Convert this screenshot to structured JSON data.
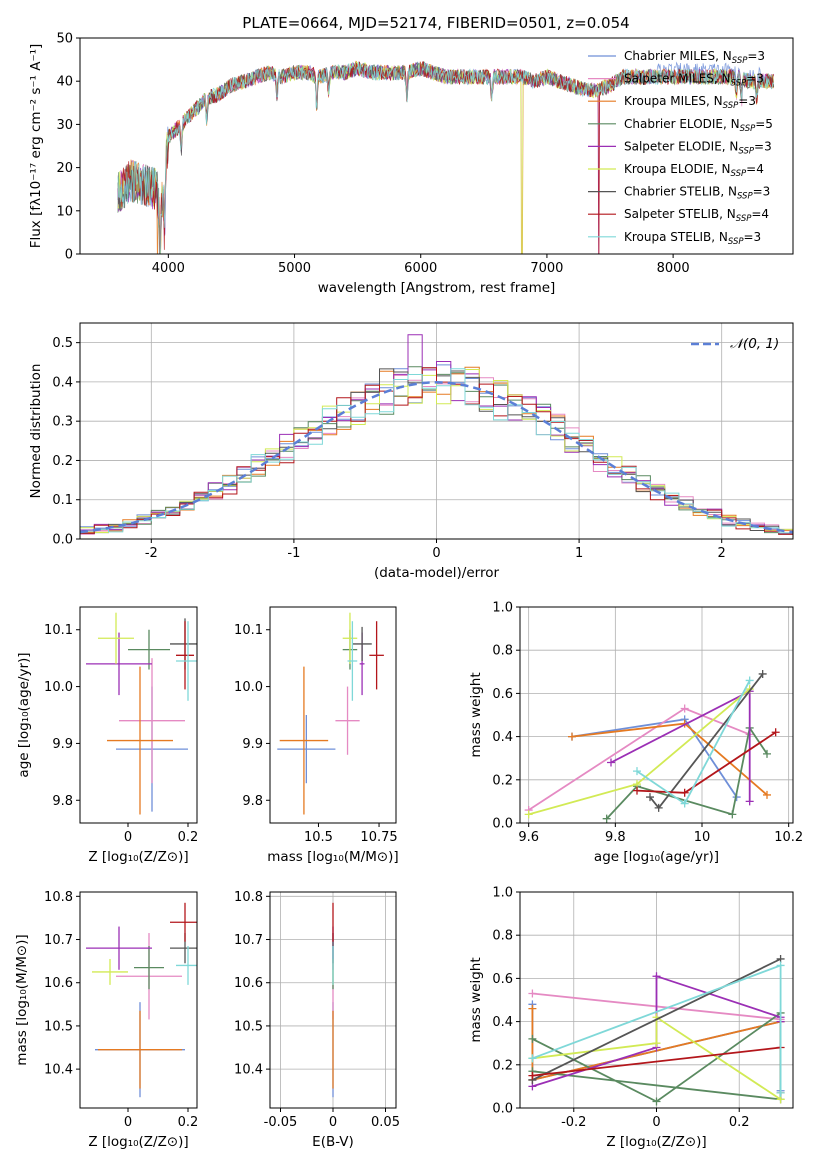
{
  "chart_data": [
    {
      "id": "spectrum",
      "type": "line",
      "title": "PLATE=0664, MJD=52174, FIBERID=0501, z=0.054",
      "xlabel": "wavelength [Angstrom, rest frame]",
      "ylabel": "Flux [fλ10⁻¹⁷ erg cm⁻² s⁻¹ A⁻¹]",
      "xlim": [
        3300,
        8950
      ],
      "ylim": [
        0,
        50
      ],
      "xticks": [
        4000,
        5000,
        6000,
        7000,
        8000
      ],
      "yticks": [
        0,
        10,
        20,
        30,
        40,
        50
      ],
      "legend_position": "upper-right",
      "spectrum_shape": {
        "x": [
          3600,
          3700,
          3800,
          3900,
          3950,
          4000,
          4100,
          4200,
          4300,
          4400,
          4500,
          4600,
          4700,
          4800,
          4900,
          5000,
          5100,
          5200,
          5300,
          5400,
          5500,
          5600,
          5700,
          5800,
          5900,
          6000,
          6100,
          6200,
          6300,
          6400,
          6500,
          6600,
          6700,
          6800,
          6900,
          7000,
          7100,
          7200,
          7300,
          7400,
          7500,
          7600,
          7700,
          7800,
          7900,
          8000,
          8100,
          8200,
          8300,
          8400,
          8500,
          8600,
          8700,
          8800
        ],
        "y": [
          14,
          17,
          16,
          15,
          12,
          27,
          30,
          33,
          36,
          37,
          39,
          40,
          41,
          42,
          41,
          42,
          42,
          41,
          42,
          42,
          43,
          42,
          42,
          42,
          42,
          43,
          42,
          41,
          41,
          41,
          41,
          41,
          41,
          41,
          40,
          41,
          40,
          39,
          38,
          38,
          39,
          41,
          41,
          41,
          41,
          41,
          41,
          41,
          41,
          41,
          41,
          40,
          40,
          40
        ]
      },
      "series": [
        {
          "name": "Chabrier MILES, N",
          "sub": "SSP",
          "suffix": "=3",
          "color": "#6f8fd8"
        },
        {
          "name": "Salpeter MILES, N",
          "sub": "SSP",
          "suffix": "=3",
          "color": "#e58ac3"
        },
        {
          "name": "Kroupa MILES, N",
          "sub": "SSP",
          "suffix": "=3",
          "color": "#e57a22"
        },
        {
          "name": "Chabrier ELODIE, N",
          "sub": "SSP",
          "suffix": "=5",
          "color": "#5a8a60"
        },
        {
          "name": "Salpeter ELODIE, N",
          "sub": "SSP",
          "suffix": "=3",
          "color": "#9b2fb5"
        },
        {
          "name": "Kroupa ELODIE, N",
          "sub": "SSP",
          "suffix": "=4",
          "color": "#d2ea55"
        },
        {
          "name": "Chabrier STELIB, N",
          "sub": "SSP",
          "suffix": "=3",
          "color": "#555555"
        },
        {
          "name": "Salpeter STELIB, N",
          "sub": "SSP",
          "suffix": "=4",
          "color": "#b3161b"
        },
        {
          "name": "Kroupa STELIB, N",
          "sub": "SSP",
          "suffix": "=3",
          "color": "#7fd8d8"
        }
      ]
    },
    {
      "id": "residuals",
      "type": "line",
      "xlabel": "(data-model)/error",
      "ylabel": "Normed distribution",
      "xlim": [
        -2.5,
        2.5
      ],
      "ylim": [
        0,
        0.55
      ],
      "xticks": [
        -2,
        -1,
        0,
        1,
        2
      ],
      "yticks": [
        0.0,
        0.1,
        0.2,
        0.3,
        0.4,
        0.5
      ],
      "grid": true,
      "legend_position": "upper-right",
      "reference_curve": {
        "name": "𝒩(0, 1)",
        "color": "#5b7fd6",
        "style": "dashed"
      },
      "bin_width": 0.1,
      "histogram_peak": 0.52
    },
    {
      "id": "age_vs_Z",
      "type": "scatter",
      "xlabel": "Z [log₁₀(Z/Z⊙)]",
      "ylabel": "age  [log₁₀(age/yr)]",
      "xlim": [
        -0.16,
        0.23
      ],
      "ylim": [
        9.76,
        10.14
      ],
      "xticks": [
        0.0,
        0.2
      ],
      "yticks": [
        9.8,
        9.9,
        10.0,
        10.1
      ],
      "points": [
        {
          "series": 0,
          "x": 0.08,
          "y": 9.89,
          "xerr": 0.12,
          "yerr": 0.11
        },
        {
          "series": 1,
          "x": 0.08,
          "y": 9.94,
          "xerr": 0.11,
          "yerr": 0.11
        },
        {
          "series": 2,
          "x": 0.04,
          "y": 9.905,
          "xerr": 0.11,
          "yerr": 0.13
        },
        {
          "series": 3,
          "x": 0.07,
          "y": 10.065,
          "xerr": 0.07,
          "yerr": 0.035
        },
        {
          "series": 4,
          "x": -0.03,
          "y": 10.04,
          "xerr": 0.11,
          "yerr": 0.055
        },
        {
          "series": 5,
          "x": -0.04,
          "y": 10.085,
          "xerr": 0.06,
          "yerr": 0.045
        },
        {
          "series": 6,
          "x": 0.19,
          "y": 10.075,
          "xerr": 0.05,
          "yerr": 0.045
        },
        {
          "series": 7,
          "x": 0.19,
          "y": 10.055,
          "xerr": 0.03,
          "yerr": 0.06
        },
        {
          "series": 8,
          "x": 0.2,
          "y": 10.045,
          "xerr": 0.04,
          "yerr": 0.07
        }
      ]
    },
    {
      "id": "age_vs_mass",
      "type": "scatter",
      "xlabel": "mass [log₁₀(M/M⊙)]",
      "ylabel": "",
      "xlim": [
        10.3,
        10.82
      ],
      "ylim": [
        9.76,
        10.14
      ],
      "xticks": [
        10.5,
        10.75
      ],
      "yticks": [
        9.8,
        9.9,
        10.0,
        10.1
      ],
      "points": [
        {
          "series": 0,
          "x": 10.45,
          "y": 9.89,
          "xerr": 0.12,
          "yerr": 0.06
        },
        {
          "series": 1,
          "x": 10.62,
          "y": 9.94,
          "xerr": 0.05,
          "yerr": 0.06
        },
        {
          "series": 2,
          "x": 10.44,
          "y": 9.905,
          "xerr": 0.1,
          "yerr": 0.13
        },
        {
          "series": 3,
          "x": 10.63,
          "y": 10.065,
          "xerr": 0.03,
          "yerr": 0.035
        },
        {
          "series": 4,
          "x": 10.68,
          "y": 10.04,
          "xerr": 0.01,
          "yerr": 0.055
        },
        {
          "series": 5,
          "x": 10.63,
          "y": 10.085,
          "xerr": 0.03,
          "yerr": 0.045
        },
        {
          "series": 6,
          "x": 10.68,
          "y": 10.075,
          "xerr": 0.04,
          "yerr": 0.03
        },
        {
          "series": 7,
          "x": 10.74,
          "y": 10.055,
          "xerr": 0.03,
          "yerr": 0.06
        },
        {
          "series": 8,
          "x": 10.64,
          "y": 10.045,
          "xerr": 0.02,
          "yerr": 0.07
        }
      ]
    },
    {
      "id": "massweight_vs_age",
      "type": "line",
      "xlabel": "age  [log₁₀(age/yr)]",
      "ylabel": "mass weight",
      "xlim": [
        9.58,
        10.21
      ],
      "ylim": [
        0,
        1.0
      ],
      "xticks": [
        9.6,
        9.8,
        10.0,
        10.2
      ],
      "yticks": [
        0.0,
        0.2,
        0.4,
        0.6,
        0.8,
        1.0
      ],
      "grid": true,
      "lines": [
        {
          "series": 0,
          "x": [
            9.7,
            9.96,
            10.08
          ],
          "y": [
            0.4,
            0.48,
            0.12
          ]
        },
        {
          "series": 1,
          "x": [
            9.6,
            9.96,
            10.11
          ],
          "y": [
            0.06,
            0.53,
            0.41
          ]
        },
        {
          "series": 2,
          "x": [
            9.7,
            9.96,
            10.15
          ],
          "y": [
            0.4,
            0.46,
            0.13
          ]
        },
        {
          "series": 3,
          "x": [
            9.78,
            9.85,
            10.07,
            10.11,
            10.15
          ],
          "y": [
            0.02,
            0.17,
            0.04,
            0.44,
            0.32
          ]
        },
        {
          "series": 4,
          "x": [
            9.79,
            10.11,
            10.11
          ],
          "y": [
            0.28,
            0.61,
            0.1
          ]
        },
        {
          "series": 5,
          "x": [
            9.6,
            9.85,
            10.11
          ],
          "y": [
            0.04,
            0.18,
            0.62
          ]
        },
        {
          "series": 6,
          "x": [
            9.88,
            9.9,
            10.14
          ],
          "y": [
            0.12,
            0.07,
            0.69
          ]
        },
        {
          "series": 7,
          "x": [
            9.85,
            9.96,
            10.17
          ],
          "y": [
            0.15,
            0.14,
            0.42
          ]
        },
        {
          "series": 8,
          "x": [
            9.85,
            9.96,
            10.11
          ],
          "y": [
            0.24,
            0.09,
            0.66
          ]
        }
      ]
    },
    {
      "id": "mass_vs_Z",
      "type": "scatter",
      "xlabel": "Z [log₁₀(Z/Z⊙)]",
      "ylabel": "mass [log₁₀(M/M⊙)]",
      "xlim": [
        -0.16,
        0.23
      ],
      "ylim": [
        10.31,
        10.81
      ],
      "xticks": [
        0.0,
        0.2
      ],
      "yticks": [
        10.4,
        10.5,
        10.6,
        10.7,
        10.8
      ],
      "points": [
        {
          "series": 0,
          "x": 0.04,
          "y": 10.445,
          "xerr": 0.15,
          "yerr": 0.11
        },
        {
          "series": 1,
          "x": 0.07,
          "y": 10.615,
          "xerr": 0.11,
          "yerr": 0.1
        },
        {
          "series": 2,
          "x": 0.04,
          "y": 10.445,
          "xerr": 0.14,
          "yerr": 0.09
        },
        {
          "series": 3,
          "x": 0.07,
          "y": 10.635,
          "xerr": 0.05,
          "yerr": 0.05
        },
        {
          "series": 4,
          "x": -0.03,
          "y": 10.68,
          "xerr": 0.11,
          "yerr": 0.05
        },
        {
          "series": 5,
          "x": -0.06,
          "y": 10.625,
          "xerr": 0.06,
          "yerr": 0.03
        },
        {
          "series": 6,
          "x": 0.19,
          "y": 10.68,
          "xerr": 0.05,
          "yerr": 0.035
        },
        {
          "series": 7,
          "x": 0.19,
          "y": 10.74,
          "xerr": 0.05,
          "yerr": 0.045
        },
        {
          "series": 8,
          "x": 0.2,
          "y": 10.64,
          "xerr": 0.04,
          "yerr": 0.045
        }
      ]
    },
    {
      "id": "mass_vs_ebv",
      "type": "scatter",
      "xlabel": "E(B-V)",
      "ylabel": "",
      "xlim": [
        -0.06,
        0.06
      ],
      "ylim": [
        10.31,
        10.81
      ],
      "xticks": [
        -0.05,
        0.0,
        0.05
      ],
      "yticks": [
        10.4,
        10.5,
        10.6,
        10.7,
        10.8
      ],
      "grid": true,
      "points": [
        {
          "series": 0,
          "x": 0.0,
          "y": 10.445,
          "xerr": 0,
          "yerr": 0.11
        },
        {
          "series": 1,
          "x": 0.0,
          "y": 10.615,
          "xerr": 0,
          "yerr": 0.1
        },
        {
          "series": 2,
          "x": 0.0,
          "y": 10.445,
          "xerr": 0,
          "yerr": 0.09
        },
        {
          "series": 3,
          "x": 0.0,
          "y": 10.635,
          "xerr": 0,
          "yerr": 0.05
        },
        {
          "series": 4,
          "x": 0.0,
          "y": 10.68,
          "xerr": 0,
          "yerr": 0.05
        },
        {
          "series": 5,
          "x": 0.0,
          "y": 10.625,
          "xerr": 0,
          "yerr": 0.03
        },
        {
          "series": 6,
          "x": 0.0,
          "y": 10.68,
          "xerr": 0,
          "yerr": 0.035
        },
        {
          "series": 7,
          "x": 0.0,
          "y": 10.74,
          "xerr": 0,
          "yerr": 0.045
        },
        {
          "series": 8,
          "x": 0.0,
          "y": 10.64,
          "xerr": 0,
          "yerr": 0.045
        }
      ]
    },
    {
      "id": "massweight_vs_Z",
      "type": "line",
      "xlabel": "Z [log₁₀(Z/Z⊙)]",
      "ylabel": "mass weight",
      "xlim": [
        -0.33,
        0.33
      ],
      "ylim": [
        0,
        1.0
      ],
      "xticks": [
        -0.2,
        0.0,
        0.2
      ],
      "yticks": [
        0.0,
        0.2,
        0.4,
        0.6,
        0.8,
        1.0
      ],
      "grid": true,
      "lines": [
        {
          "series": 0,
          "x": [
            -0.3,
            -0.3,
            0.3,
            0.3
          ],
          "y": [
            0.48,
            0.13,
            0.4,
            0.08
          ]
        },
        {
          "series": 1,
          "x": [
            -0.3,
            0.3
          ],
          "y": [
            0.53,
            0.41
          ]
        },
        {
          "series": 2,
          "x": [
            -0.3,
            -0.3,
            0.3,
            0.3
          ],
          "y": [
            0.46,
            0.13,
            0.4,
            0.07
          ]
        },
        {
          "series": 3,
          "x": [
            -0.3,
            0.0,
            0.3,
            0.3,
            -0.3
          ],
          "y": [
            0.32,
            0.03,
            0.44,
            0.04,
            0.17
          ]
        },
        {
          "series": 4,
          "x": [
            -0.3,
            0.0,
            0.0,
            0.3,
            0.3
          ],
          "y": [
            0.1,
            0.28,
            0.61,
            0.42,
            0.4
          ]
        },
        {
          "series": 5,
          "x": [
            -0.3,
            0.0,
            0.0,
            0.3
          ],
          "y": [
            0.23,
            0.3,
            0.42,
            0.04
          ]
        },
        {
          "series": 6,
          "x": [
            -0.3,
            0.3
          ],
          "y": [
            0.13,
            0.69
          ]
        },
        {
          "series": 7,
          "x": [
            -0.3,
            0.3
          ],
          "y": [
            0.15,
            0.28
          ]
        },
        {
          "series": 8,
          "x": [
            -0.3,
            0.3,
            0.3
          ],
          "y": [
            0.23,
            0.66,
            0.07
          ]
        }
      ]
    }
  ]
}
